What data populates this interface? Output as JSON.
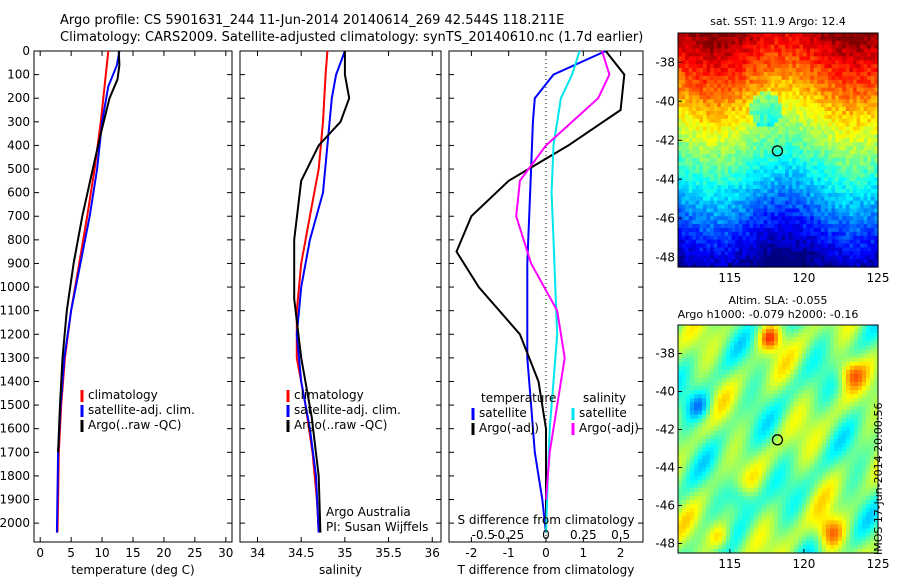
{
  "header": {
    "line1": "Argo profile: CS 5901631_244 11-Jun-2014 20140614_269 42.544S 118.211E",
    "line2": "Climatology: CARS2009. Satellite-adjusted climatology: synTS_20140610.nc (1.7d earlier)"
  },
  "stamp": "IMOS 17-Jun-2014 20:00:56",
  "colors": {
    "climatology": "#ff0000",
    "satellite": "#0000ff",
    "argo": "#000000",
    "satellite_s": "#00e5ee",
    "argo_s": "#ff00ff",
    "marker": "#000000"
  },
  "chart_data": [
    {
      "type": "line",
      "id": "temperature",
      "xlabel": "temperature (deg C)",
      "ylabel": "",
      "xlim": [
        -1,
        31
      ],
      "ylim": [
        2080,
        0
      ],
      "xticks": [
        0,
        5,
        10,
        15,
        20,
        25,
        30
      ],
      "yticks": [
        0,
        100,
        200,
        300,
        400,
        500,
        600,
        700,
        800,
        900,
        1000,
        1100,
        1200,
        1300,
        1400,
        1500,
        1600,
        1700,
        1800,
        1900,
        2000
      ],
      "legend": [
        "climatology",
        "satellite-adj. clim.",
        "Argo(..raw -QC)"
      ],
      "series": [
        {
          "name": "climatology",
          "color": "#ff0000",
          "x": [
            11.0,
            10.6,
            9.8,
            8.8,
            7.6,
            6.3,
            5.0,
            4.0,
            3.4,
            3.0,
            2.9,
            2.8
          ],
          "y": [
            0,
            100,
            300,
            500,
            700,
            900,
            1100,
            1300,
            1500,
            1700,
            1900,
            2040
          ]
        },
        {
          "name": "satellite-adj. clim.",
          "color": "#0000ff",
          "x": [
            12.8,
            12.4,
            11.0,
            10.0,
            9.2,
            8.0,
            6.5,
            5.0,
            3.9,
            3.3,
            2.9,
            2.7
          ],
          "y": [
            0,
            60,
            150,
            300,
            500,
            700,
            900,
            1100,
            1300,
            1500,
            1700,
            2040
          ]
        },
        {
          "name": "Argo(..raw -QC)",
          "color": "#000000",
          "x": [
            12.7,
            12.8,
            12.5,
            11.2,
            9.8,
            8.5,
            6.8,
            5.4,
            4.3,
            3.6,
            3.2,
            2.9
          ],
          "y": [
            0,
            60,
            120,
            200,
            350,
            500,
            700,
            900,
            1100,
            1300,
            1500,
            1700
          ]
        }
      ]
    },
    {
      "type": "line",
      "id": "salinity",
      "xlabel": "salinity",
      "ylabel": "",
      "xlim": [
        33.8,
        36.1
      ],
      "ylim": [
        2080,
        0
      ],
      "xticks": [
        34,
        34.5,
        35,
        35.5,
        36
      ],
      "legend": [
        "climatology",
        "satellite-adj. clim.",
        "Argo(..raw -QC)"
      ],
      "annotation": [
        "Argo Australia",
        "PI: Susan Wijffels"
      ],
      "series": [
        {
          "name": "climatology",
          "color": "#ff0000",
          "x": [
            34.8,
            34.78,
            34.75,
            34.7,
            34.6,
            34.5,
            34.45,
            34.45,
            34.55,
            34.63,
            34.68,
            34.7
          ],
          "y": [
            0,
            100,
            300,
            500,
            700,
            900,
            1100,
            1300,
            1500,
            1700,
            1900,
            2040
          ]
        },
        {
          "name": "satellite-adj. clim.",
          "color": "#0000ff",
          "x": [
            35.0,
            34.9,
            34.85,
            34.8,
            34.75,
            34.6,
            34.5,
            34.45,
            34.5,
            34.6,
            34.67,
            34.7
          ],
          "y": [
            0,
            100,
            200,
            400,
            600,
            800,
            1000,
            1200,
            1400,
            1600,
            1800,
            2040
          ]
        },
        {
          "name": "Argo(..raw -QC)",
          "color": "#000000",
          "x": [
            35.0,
            35.0,
            35.05,
            34.95,
            34.7,
            34.5,
            34.42,
            34.42,
            34.5,
            34.62,
            34.7,
            34.72
          ],
          "y": [
            0,
            100,
            200,
            300,
            400,
            550,
            800,
            1050,
            1300,
            1550,
            1800,
            2040
          ]
        }
      ]
    },
    {
      "type": "line",
      "id": "difference",
      "xlabel": "T difference from climatology",
      "xlabel2": "S difference from climatology",
      "xlim": [
        -2.6,
        2.6
      ],
      "ylim": [
        2080,
        0
      ],
      "xticks": [
        -2,
        -1,
        0,
        1,
        2
      ],
      "xticks2": [
        "-0.5",
        "-0.25",
        "0",
        "0.25",
        "0.5"
      ],
      "legend_temperature": {
        "title": "temperature",
        "items": [
          "satellite",
          "Argo(-adj)"
        ]
      },
      "legend_salinity": {
        "title": "salinity",
        "items": [
          "satellite",
          "Argo(-adj)"
        ]
      },
      "series": [
        {
          "name": "satellite",
          "group": "temperature",
          "color": "#0000ff",
          "x": [
            1.6,
            0.2,
            -0.3,
            -0.35,
            -0.4,
            -0.45,
            -0.5,
            -0.5,
            -0.5,
            -0.4,
            -0.3,
            -0.1,
            0.0
          ],
          "y": [
            0,
            100,
            200,
            300,
            500,
            700,
            900,
            1100,
            1300,
            1500,
            1700,
            1900,
            2040
          ]
        },
        {
          "name": "Argo(-adj)",
          "group": "temperature",
          "color": "#000000",
          "x": [
            1.6,
            2.1,
            2.0,
            0.6,
            -1.0,
            -2.0,
            -2.4,
            -1.8,
            -0.7,
            -0.2,
            0.0,
            0.0,
            0.0
          ],
          "y": [
            0,
            100,
            250,
            400,
            550,
            700,
            850,
            1000,
            1200,
            1400,
            1600,
            1800,
            2040
          ]
        },
        {
          "name": "satellite",
          "group": "salinity",
          "color": "#00e5ee",
          "x": [
            0.9,
            0.7,
            0.4,
            0.2,
            0.15,
            0.2,
            0.25,
            0.3,
            0.2,
            0.1,
            0.05,
            0.0
          ],
          "y": [
            0,
            100,
            200,
            400,
            600,
            800,
            1000,
            1200,
            1400,
            1600,
            1800,
            2040
          ]
        },
        {
          "name": "Argo(-adj)",
          "group": "salinity",
          "color": "#ff00ff",
          "x": [
            1.5,
            1.7,
            1.4,
            0.0,
            -0.7,
            -0.8,
            -0.4,
            0.3,
            0.5,
            0.3,
            0.1,
            0.0
          ],
          "y": [
            0,
            100,
            200,
            400,
            550,
            700,
            900,
            1100,
            1300,
            1500,
            1700,
            1900
          ]
        }
      ]
    },
    {
      "type": "heatmap",
      "id": "sst_map",
      "title": "sat. SST: 11.9 Argo: 12.4",
      "xlim": [
        111.5,
        125
      ],
      "ylim": [
        -48.5,
        -36.5
      ],
      "xticks": [
        115,
        120,
        125
      ],
      "yticks": [
        -38,
        -40,
        -42,
        -44,
        -46,
        -48
      ],
      "marker": [
        118.211,
        -42.544
      ],
      "colormap": "jet"
    },
    {
      "type": "heatmap",
      "id": "sla_map",
      "title": "Altim. SLA: -0.055",
      "title2": "Argo h1000: -0.079 h2000: -0.16",
      "xlim": [
        111.5,
        125
      ],
      "ylim": [
        -48.5,
        -36.5
      ],
      "xticks": [
        115,
        120,
        125
      ],
      "yticks": [
        -38,
        -40,
        -42,
        -44,
        -46,
        -48
      ],
      "marker": [
        118.211,
        -42.544
      ],
      "colormap": "jet"
    }
  ]
}
